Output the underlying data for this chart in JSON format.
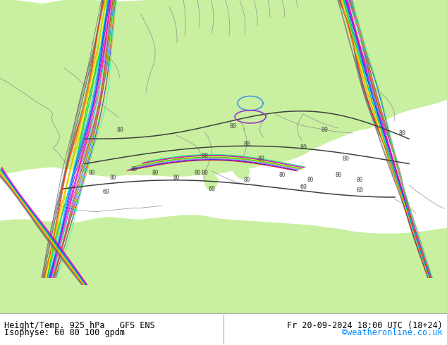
{
  "title_left_line1": "Height/Temp. 925 hPa   GFS ENS",
  "title_left_line2": "Isophyse: 60 80 100 gpdm",
  "title_right_line1": "Fr 20-09-2024 18:00 UTC (18+24)",
  "title_right_line2": "©weatheronline.co.uk",
  "land_color": "#c8f0a0",
  "sea_color": "#d8d8d8",
  "border_color": "#909090",
  "footer_bg": "#ffffff",
  "footer_text_color": "#000000",
  "credit_color": "#0088ff",
  "font_family": "monospace",
  "figure_width": 6.34,
  "figure_height": 4.9,
  "dpi": 100,
  "contour_color": "#404040",
  "ens_colors": [
    "#808080",
    "#808080",
    "#808080",
    "#808080",
    "#808080",
    "#ff0000",
    "#ff6600",
    "#ff8800",
    "#ffcc00",
    "#ffff00",
    "#88cc00",
    "#00bb00",
    "#00ccaa",
    "#00ccff",
    "#0088ff",
    "#0044ff",
    "#8800ff",
    "#cc00ff",
    "#ff00cc",
    "#ff0088",
    "#00ffff",
    "#ff44ff",
    "#884400",
    "#cc8800",
    "#4488ff"
  ]
}
